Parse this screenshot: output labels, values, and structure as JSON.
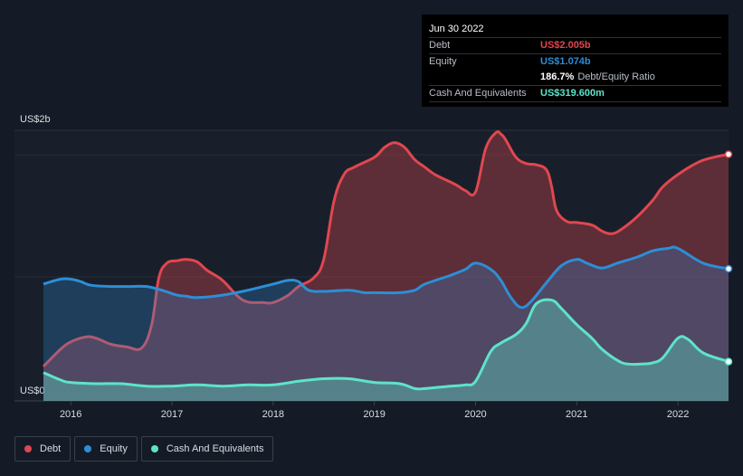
{
  "tooltip": {
    "date": "Jun 30 2022",
    "debt_label": "Debt",
    "debt_value": "US$2.005b",
    "equity_label": "Equity",
    "equity_value": "US$1.074b",
    "ratio_value": "186.7%",
    "ratio_label": "Debt/Equity Ratio",
    "cash_label": "Cash And Equivalents",
    "cash_value": "US$319.600m"
  },
  "legend": [
    {
      "label": "Debt",
      "color": "#e0474f"
    },
    {
      "label": "Equity",
      "color": "#2d8ed6"
    },
    {
      "label": "Cash And Equivalents",
      "color": "#5ee3c9"
    }
  ],
  "chart_data": {
    "type": "area",
    "title": "",
    "xlabel": "",
    "ylabel": "",
    "y_top_label": "US$2b",
    "y_bottom_label": "US$0",
    "xlim": [
      2015.73,
      2022.5
    ],
    "ylim": [
      0,
      2.2
    ],
    "x_tick_labels": [
      "2016",
      "2017",
      "2018",
      "2019",
      "2020",
      "2021",
      "2022"
    ],
    "x_ticks": [
      2016,
      2017,
      2018,
      2019,
      2020,
      2021,
      2022
    ],
    "colors": {
      "debt": "#e0474f",
      "equity": "#2d8ed6",
      "cash": "#5ee3c9"
    },
    "series": [
      {
        "name": "Debt",
        "x": [
          2015.73,
          2015.9,
          2016.0,
          2016.15,
          2016.25,
          2016.4,
          2016.55,
          2016.7,
          2016.8,
          2016.87,
          2016.95,
          2017.05,
          2017.15,
          2017.25,
          2017.35,
          2017.5,
          2017.7,
          2017.9,
          2018.0,
          2018.15,
          2018.25,
          2018.4,
          2018.5,
          2018.6,
          2018.7,
          2018.8,
          2019.0,
          2019.1,
          2019.2,
          2019.3,
          2019.4,
          2019.5,
          2019.6,
          2019.8,
          2019.9,
          2020.0,
          2020.1,
          2020.2,
          2020.25,
          2020.3,
          2020.4,
          2020.5,
          2020.6,
          2020.7,
          2020.75,
          2020.8,
          2020.9,
          2021.0,
          2021.15,
          2021.25,
          2021.35,
          2021.45,
          2021.6,
          2021.75,
          2021.85,
          2022.0,
          2022.2,
          2022.35,
          2022.5
        ],
        "values": [
          0.28,
          0.42,
          0.48,
          0.52,
          0.51,
          0.46,
          0.44,
          0.43,
          0.62,
          1.0,
          1.12,
          1.14,
          1.15,
          1.13,
          1.06,
          0.98,
          0.82,
          0.8,
          0.8,
          0.86,
          0.93,
          1.0,
          1.15,
          1.62,
          1.84,
          1.9,
          1.98,
          2.06,
          2.1,
          2.06,
          1.96,
          1.9,
          1.84,
          1.76,
          1.71,
          1.7,
          2.05,
          2.18,
          2.17,
          2.12,
          1.98,
          1.93,
          1.92,
          1.88,
          1.75,
          1.55,
          1.46,
          1.45,
          1.43,
          1.38,
          1.36,
          1.4,
          1.5,
          1.63,
          1.74,
          1.84,
          1.94,
          1.98,
          2.005
        ]
      },
      {
        "name": "Equity",
        "x": [
          2015.73,
          2015.9,
          2016.0,
          2016.1,
          2016.2,
          2016.4,
          2016.6,
          2016.75,
          2016.9,
          2017.05,
          2017.15,
          2017.25,
          2017.5,
          2017.75,
          2018.0,
          2018.15,
          2018.25,
          2018.35,
          2018.5,
          2018.75,
          2018.9,
          2019.0,
          2019.25,
          2019.4,
          2019.5,
          2019.75,
          2019.9,
          2020.0,
          2020.15,
          2020.25,
          2020.35,
          2020.45,
          2020.55,
          2020.7,
          2020.85,
          2021.0,
          2021.1,
          2021.25,
          2021.4,
          2021.6,
          2021.75,
          2021.9,
          2022.0,
          2022.25,
          2022.5
        ],
        "values": [
          0.95,
          0.99,
          0.99,
          0.97,
          0.94,
          0.93,
          0.93,
          0.93,
          0.9,
          0.86,
          0.85,
          0.84,
          0.86,
          0.9,
          0.95,
          0.98,
          0.97,
          0.9,
          0.89,
          0.9,
          0.88,
          0.88,
          0.88,
          0.9,
          0.95,
          1.02,
          1.07,
          1.12,
          1.07,
          0.98,
          0.84,
          0.76,
          0.81,
          0.96,
          1.1,
          1.15,
          1.12,
          1.08,
          1.12,
          1.17,
          1.22,
          1.24,
          1.24,
          1.12,
          1.074
        ]
      },
      {
        "name": "Cash And Equivalents",
        "x": [
          2015.73,
          2015.9,
          2016.0,
          2016.25,
          2016.5,
          2016.75,
          2017.0,
          2017.25,
          2017.5,
          2017.75,
          2018.0,
          2018.25,
          2018.5,
          2018.75,
          2019.0,
          2019.25,
          2019.4,
          2019.5,
          2019.75,
          2019.9,
          2020.0,
          2020.15,
          2020.25,
          2020.4,
          2020.5,
          2020.6,
          2020.75,
          2020.85,
          2021.0,
          2021.15,
          2021.25,
          2021.4,
          2021.5,
          2021.65,
          2021.75,
          2021.85,
          2022.0,
          2022.1,
          2022.25,
          2022.5
        ],
        "values": [
          0.23,
          0.17,
          0.15,
          0.14,
          0.14,
          0.12,
          0.12,
          0.13,
          0.12,
          0.13,
          0.13,
          0.16,
          0.18,
          0.18,
          0.15,
          0.14,
          0.1,
          0.1,
          0.12,
          0.13,
          0.16,
          0.4,
          0.47,
          0.54,
          0.63,
          0.79,
          0.82,
          0.75,
          0.62,
          0.51,
          0.42,
          0.33,
          0.3,
          0.3,
          0.31,
          0.35,
          0.51,
          0.5,
          0.39,
          0.3196
        ]
      }
    ]
  }
}
